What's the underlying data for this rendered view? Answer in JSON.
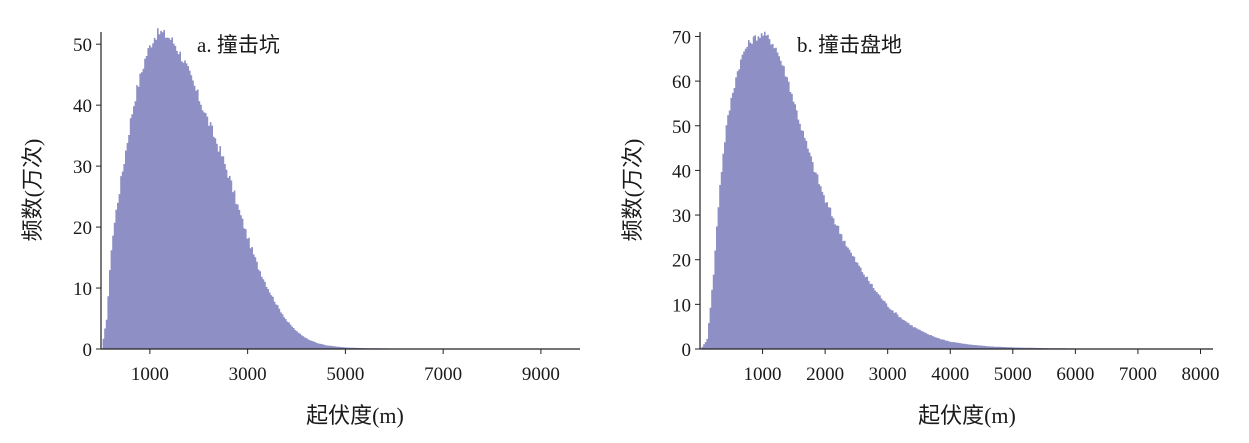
{
  "figure": {
    "fill_color": "#8e8fc4",
    "axis_color": "#222222"
  },
  "chart_data": [
    {
      "type": "histogram",
      "title": "a. 撞击坑",
      "xlabel": "起伏度(m)",
      "ylabel": "频数(万次)",
      "xlim": [
        0,
        9800
      ],
      "ylim": [
        0,
        52
      ],
      "xticks": [
        1000,
        3000,
        5000,
        7000,
        9000
      ],
      "yticks": [
        0,
        10,
        20,
        30,
        40,
        50
      ],
      "grid": false,
      "legend": "none",
      "x": [
        0,
        100,
        200,
        300,
        400,
        500,
        600,
        700,
        800,
        900,
        1000,
        1100,
        1200,
        1300,
        1400,
        1500,
        1600,
        1700,
        1800,
        1900,
        2000,
        2200,
        2400,
        2600,
        2800,
        3000,
        3200,
        3400,
        3600,
        3800,
        4000,
        4200,
        4400,
        4600,
        4800,
        5000,
        5200,
        5500,
        6000,
        7000,
        8000,
        9000,
        9800
      ],
      "values": [
        0,
        5,
        17,
        23,
        28,
        33,
        38,
        42,
        45,
        48,
        50,
        51.5,
        52,
        51.5,
        51,
        50,
        48.5,
        47,
        45,
        43,
        41,
        37,
        33,
        28.5,
        23,
        18,
        13.5,
        10,
        7,
        4.5,
        2.8,
        1.7,
        1.0,
        0.6,
        0.4,
        0.25,
        0.18,
        0.12,
        0.08,
        0.05,
        0.03,
        0.02,
        0.02
      ]
    },
    {
      "type": "histogram",
      "title": "b. 撞击盘地",
      "xlabel": "起伏度(m)",
      "ylabel": "频数(万次)",
      "xlim": [
        0,
        8200
      ],
      "ylim": [
        0,
        71
      ],
      "xticks": [
        1000,
        2000,
        3000,
        4000,
        5000,
        6000,
        7000,
        8000
      ],
      "xtick_labels": [
        "1000",
        "2000",
        "3000",
        "4000",
        "5000",
        "6000",
        "7000",
        "8000"
      ],
      "yticks": [
        0,
        10,
        20,
        30,
        40,
        50,
        60,
        70
      ],
      "grid": false,
      "legend": "none",
      "x": [
        0,
        100,
        200,
        300,
        400,
        500,
        600,
        700,
        800,
        900,
        1000,
        1100,
        1200,
        1300,
        1400,
        1500,
        1600,
        1700,
        1800,
        1900,
        2000,
        2200,
        2400,
        2600,
        2800,
        3000,
        3200,
        3400,
        3600,
        3800,
        4000,
        4300,
        4600,
        5000,
        5500,
        6000,
        7000,
        8000,
        8200
      ],
      "values": [
        0,
        2,
        16,
        36,
        49,
        57,
        63,
        67,
        69,
        70,
        70.5,
        69.5,
        67.5,
        64,
        60,
        55,
        50,
        45.5,
        41,
        37,
        33,
        27,
        21.5,
        17,
        13,
        9.5,
        7,
        5,
        3.5,
        2.4,
        1.6,
        1.0,
        0.6,
        0.35,
        0.2,
        0.12,
        0.06,
        0.03,
        0.03
      ]
    }
  ]
}
